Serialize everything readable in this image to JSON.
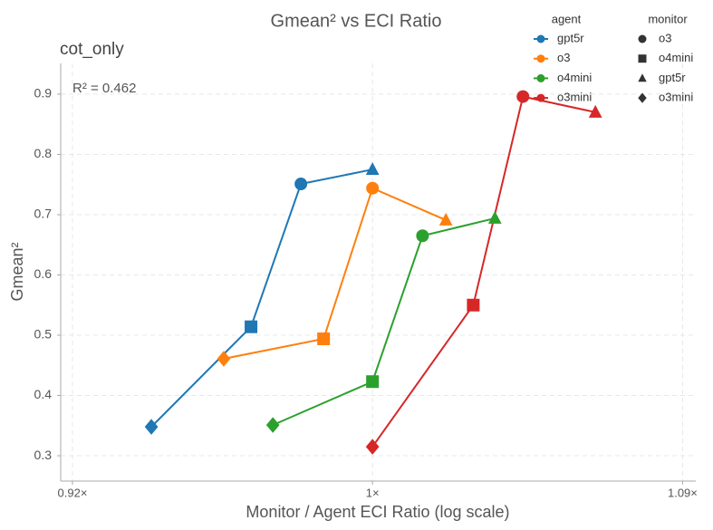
{
  "chart_data": {
    "type": "line",
    "title": "Gmean² vs ECI Ratio",
    "subtitle": "cot_only",
    "x_label": "Monitor / Agent ECI Ratio (log scale)",
    "y_label": "Gmean²",
    "annotation": "R² = 0.462",
    "x_scale": "log",
    "grid": true,
    "legend_position": "upper right",
    "xlim": [
      0.917,
      1.094
    ],
    "ylim": [
      0.258,
      0.951
    ],
    "xticks": [
      {
        "value": 0.92,
        "label": "0.92×"
      },
      {
        "value": 1,
        "label": "1×"
      },
      {
        "value": 1.09,
        "label": "1.09×"
      }
    ],
    "yticks": [
      0.3,
      0.4,
      0.5,
      0.6,
      0.7,
      0.8,
      0.9
    ],
    "agent_legend_title": "agent",
    "monitor_legend_title": "monitor",
    "monitors": [
      {
        "name": "o3",
        "marker": "circle"
      },
      {
        "name": "o4mini",
        "marker": "square"
      },
      {
        "name": "gpt5r",
        "marker": "triangle"
      },
      {
        "name": "o3mini",
        "marker": "diamond"
      }
    ],
    "series": [
      {
        "name": "gpt5r",
        "color": "#1f77b4",
        "markers": [
          "diamond",
          "square",
          "circle",
          "triangle"
        ],
        "x": [
          0.9404,
          0.9668,
          0.9803,
          1.0
        ],
        "values": [
          0.348,
          0.514,
          0.751,
          0.775
        ]
      },
      {
        "name": "o3",
        "color": "#ff7f0e",
        "markers": [
          "diamond",
          "square",
          "circle",
          "triangle"
        ],
        "x": [
          0.9595,
          0.9865,
          1.0,
          1.0206
        ],
        "values": [
          0.461,
          0.494,
          0.744,
          0.691
        ]
      },
      {
        "name": "o4mini",
        "color": "#2ca02c",
        "markers": [
          "diamond",
          "square",
          "circle",
          "triangle"
        ],
        "x": [
          0.9727,
          1.0,
          1.014,
          1.0346
        ],
        "values": [
          0.351,
          0.423,
          0.665,
          0.694
        ]
      },
      {
        "name": "o3mini",
        "color": "#d62728",
        "markers": [
          "diamond",
          "square",
          "circle",
          "triangle"
        ],
        "x": [
          1.0,
          1.0284,
          1.0427,
          1.0639
        ],
        "values": [
          0.315,
          0.55,
          0.896,
          0.87
        ]
      }
    ]
  }
}
